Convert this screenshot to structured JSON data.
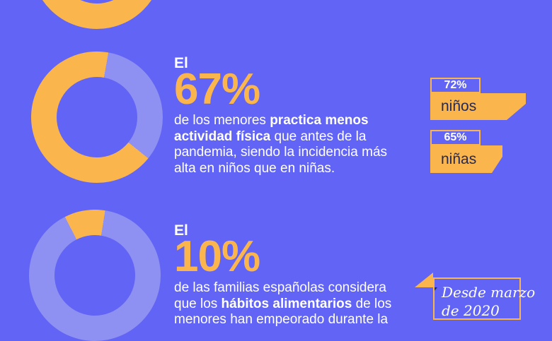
{
  "colors": {
    "background": "#6164F4",
    "yellow": "#FAB54C",
    "ring": "#8E90F2",
    "navy": "#242A55",
    "white": "#FFFFFF"
  },
  "chart_data": [
    {
      "type": "pie",
      "subtype": "donut",
      "name": "donut-top-partial",
      "values": [
        100
      ],
      "colors": [
        "yellow"
      ],
      "rotate": 0,
      "labels": [
        "arco visible (estadística cortada por el borde superior)"
      ]
    },
    {
      "type": "pie",
      "subtype": "donut",
      "name": "donut-actividad-fisica",
      "title": "El 67% de los menores practica menos actividad física",
      "values": [
        33,
        67
      ],
      "colors": [
        "ring",
        "yellow"
      ],
      "rotate": 10,
      "labels": [
        "resto",
        "practica menos actividad física"
      ]
    },
    {
      "type": "pie",
      "subtype": "donut",
      "name": "donut-habitos-alimentarios",
      "title": "El 10% de las familias españolas considera que los hábitos alimentarios han empeorado",
      "values": [
        10,
        90
      ],
      "colors": [
        "yellow",
        "ring"
      ],
      "rotate": -27,
      "labels": [
        "considera que los hábitos alimentarios empeoraron",
        "resto"
      ]
    },
    {
      "type": "bar",
      "name": "incidencia-por-sexo",
      "categories": [
        "niños",
        "niñas"
      ],
      "values": [
        72,
        65
      ],
      "unit": "%"
    }
  ],
  "sections": [
    {
      "intro": "El",
      "stat": "67%",
      "body": [
        [
          {
            "t": "de los menores "
          },
          {
            "t": "practica menos",
            "b": 1
          }
        ],
        [
          {
            "t": "actividad física",
            "b": 1
          },
          {
            "t": " que antes de la"
          }
        ],
        [
          {
            "t": "pandemia, siendo la incidencia más"
          }
        ],
        [
          {
            "t": "alta en niños que en niñas."
          }
        ]
      ],
      "badges": [
        {
          "value_label": "72%",
          "label": "niños"
        },
        {
          "value_label": "65%",
          "label": "niñas"
        }
      ]
    },
    {
      "intro": "El",
      "stat": "10%",
      "body": [
        [
          {
            "t": "de las familias españolas considera"
          }
        ],
        [
          {
            "t": "que los "
          },
          {
            "t": "hábitos alimentarios",
            "b": 1
          },
          {
            "t": " de los"
          }
        ],
        [
          {
            "t": "menores han empeorado durante la"
          }
        ]
      ]
    }
  ],
  "note": {
    "line1": "Desde marzo",
    "line2": "de 2020"
  }
}
